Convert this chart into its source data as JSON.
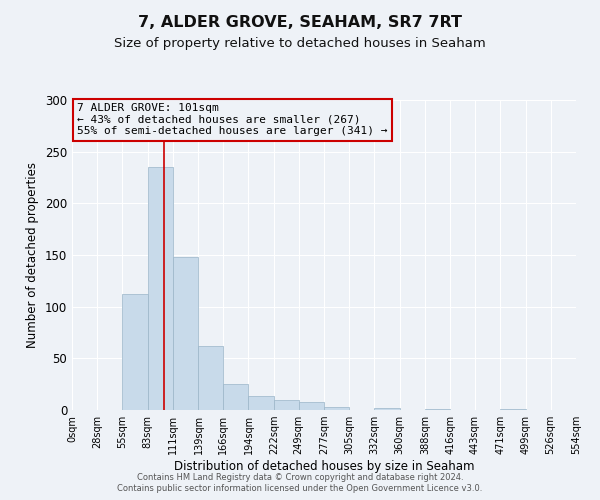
{
  "title": "7, ALDER GROVE, SEAHAM, SR7 7RT",
  "subtitle": "Size of property relative to detached houses in Seaham",
  "xlabel": "Distribution of detached houses by size in Seaham",
  "ylabel": "Number of detached properties",
  "bar_color": "#c8daea",
  "bar_edge_color": "#9ab5c8",
  "bin_edges": [
    0,
    28,
    55,
    83,
    111,
    139,
    166,
    194,
    222,
    249,
    277,
    305,
    332,
    360,
    388,
    416,
    443,
    471,
    499,
    526,
    554
  ],
  "bin_labels": [
    "0sqm",
    "28sqm",
    "55sqm",
    "83sqm",
    "111sqm",
    "139sqm",
    "166sqm",
    "194sqm",
    "222sqm",
    "249sqm",
    "277sqm",
    "305sqm",
    "332sqm",
    "360sqm",
    "388sqm",
    "416sqm",
    "443sqm",
    "471sqm",
    "499sqm",
    "526sqm",
    "554sqm"
  ],
  "counts": [
    0,
    0,
    112,
    235,
    148,
    62,
    25,
    14,
    10,
    8,
    3,
    0,
    2,
    0,
    1,
    0,
    0,
    1,
    0,
    0
  ],
  "property_size": 101,
  "vline_color": "#cc0000",
  "annotation_title": "7 ALDER GROVE: 101sqm",
  "annotation_line1": "← 43% of detached houses are smaller (267)",
  "annotation_line2": "55% of semi-detached houses are larger (341) →",
  "annotation_border_color": "#cc0000",
  "ylim": [
    0,
    300
  ],
  "yticks": [
    0,
    50,
    100,
    150,
    200,
    250,
    300
  ],
  "background_color": "#eef2f7",
  "plot_bg_color": "#eef2f7",
  "footer_line1": "Contains HM Land Registry data © Crown copyright and database right 2024.",
  "footer_line2": "Contains public sector information licensed under the Open Government Licence v3.0.",
  "grid_color": "#ffffff",
  "title_fontsize": 11.5,
  "subtitle_fontsize": 9.5,
  "annotation_fontsize": 8.0
}
